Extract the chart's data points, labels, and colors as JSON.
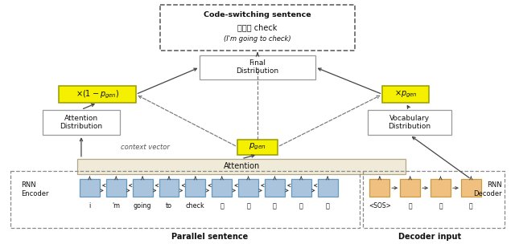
{
  "encoder_tokens": [
    "i",
    "'m",
    "going",
    "to",
    "check",
    "我",
    "要",
    "去",
    "棂",
    "查"
  ],
  "decoder_tokens": [
    "<SOS>",
    "我",
    "要",
    "去"
  ],
  "parallel_label": "Parallel sentence",
  "decoder_label": "Decoder input",
  "cs_title": "Code-switching sentence",
  "cs_line1": "我要去 check",
  "cs_line2": "(I'm going to check)",
  "rnn_encoder_label": "RNN\nEncoder",
  "rnn_decoder_label": "RNN\nDecoder",
  "attention_label": "Attention",
  "attention_dist_label": "Attention\nDistribution",
  "vocab_dist_label": "Vocabulary\nDistribution",
  "final_dist_label": "Final\nDistribution",
  "context_vector_label": "context vector",
  "bg_color": "#ffffff",
  "box_blue": "#aac4de",
  "box_orange": "#f0c080",
  "box_yellow": "#f5f000",
  "box_attention_bg": "#f0ead8",
  "arrow_color": "#444444",
  "dashed_color": "#777777",
  "text_color": "#111111"
}
